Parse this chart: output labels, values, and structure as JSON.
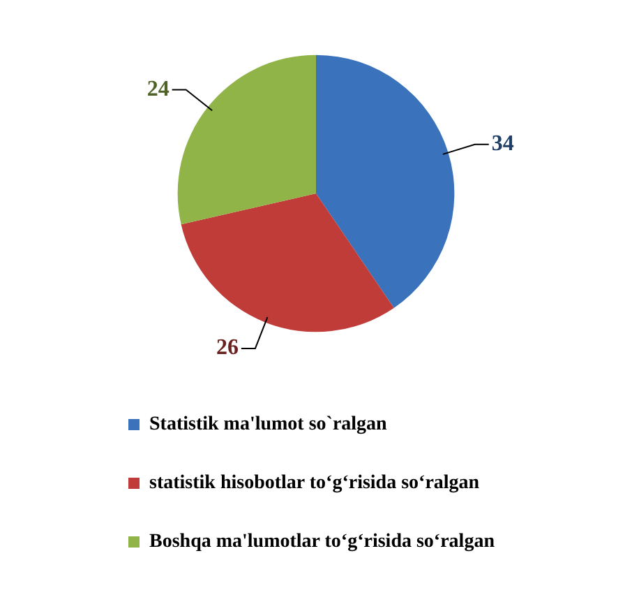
{
  "chart_data": {
    "type": "pie",
    "categories": [
      "Statistik ma'lumot so`ralgan",
      "statistik hisobotlar to‘g‘risida so‘ralgan",
      "Boshqa ma'lumotlar to‘g‘risida so‘ralgan"
    ],
    "values": [
      34,
      26,
      24
    ],
    "colors": [
      "#3a73bb",
      "#c03c39",
      "#90b447"
    ],
    "data_labels": true,
    "legend": "bottom"
  }
}
